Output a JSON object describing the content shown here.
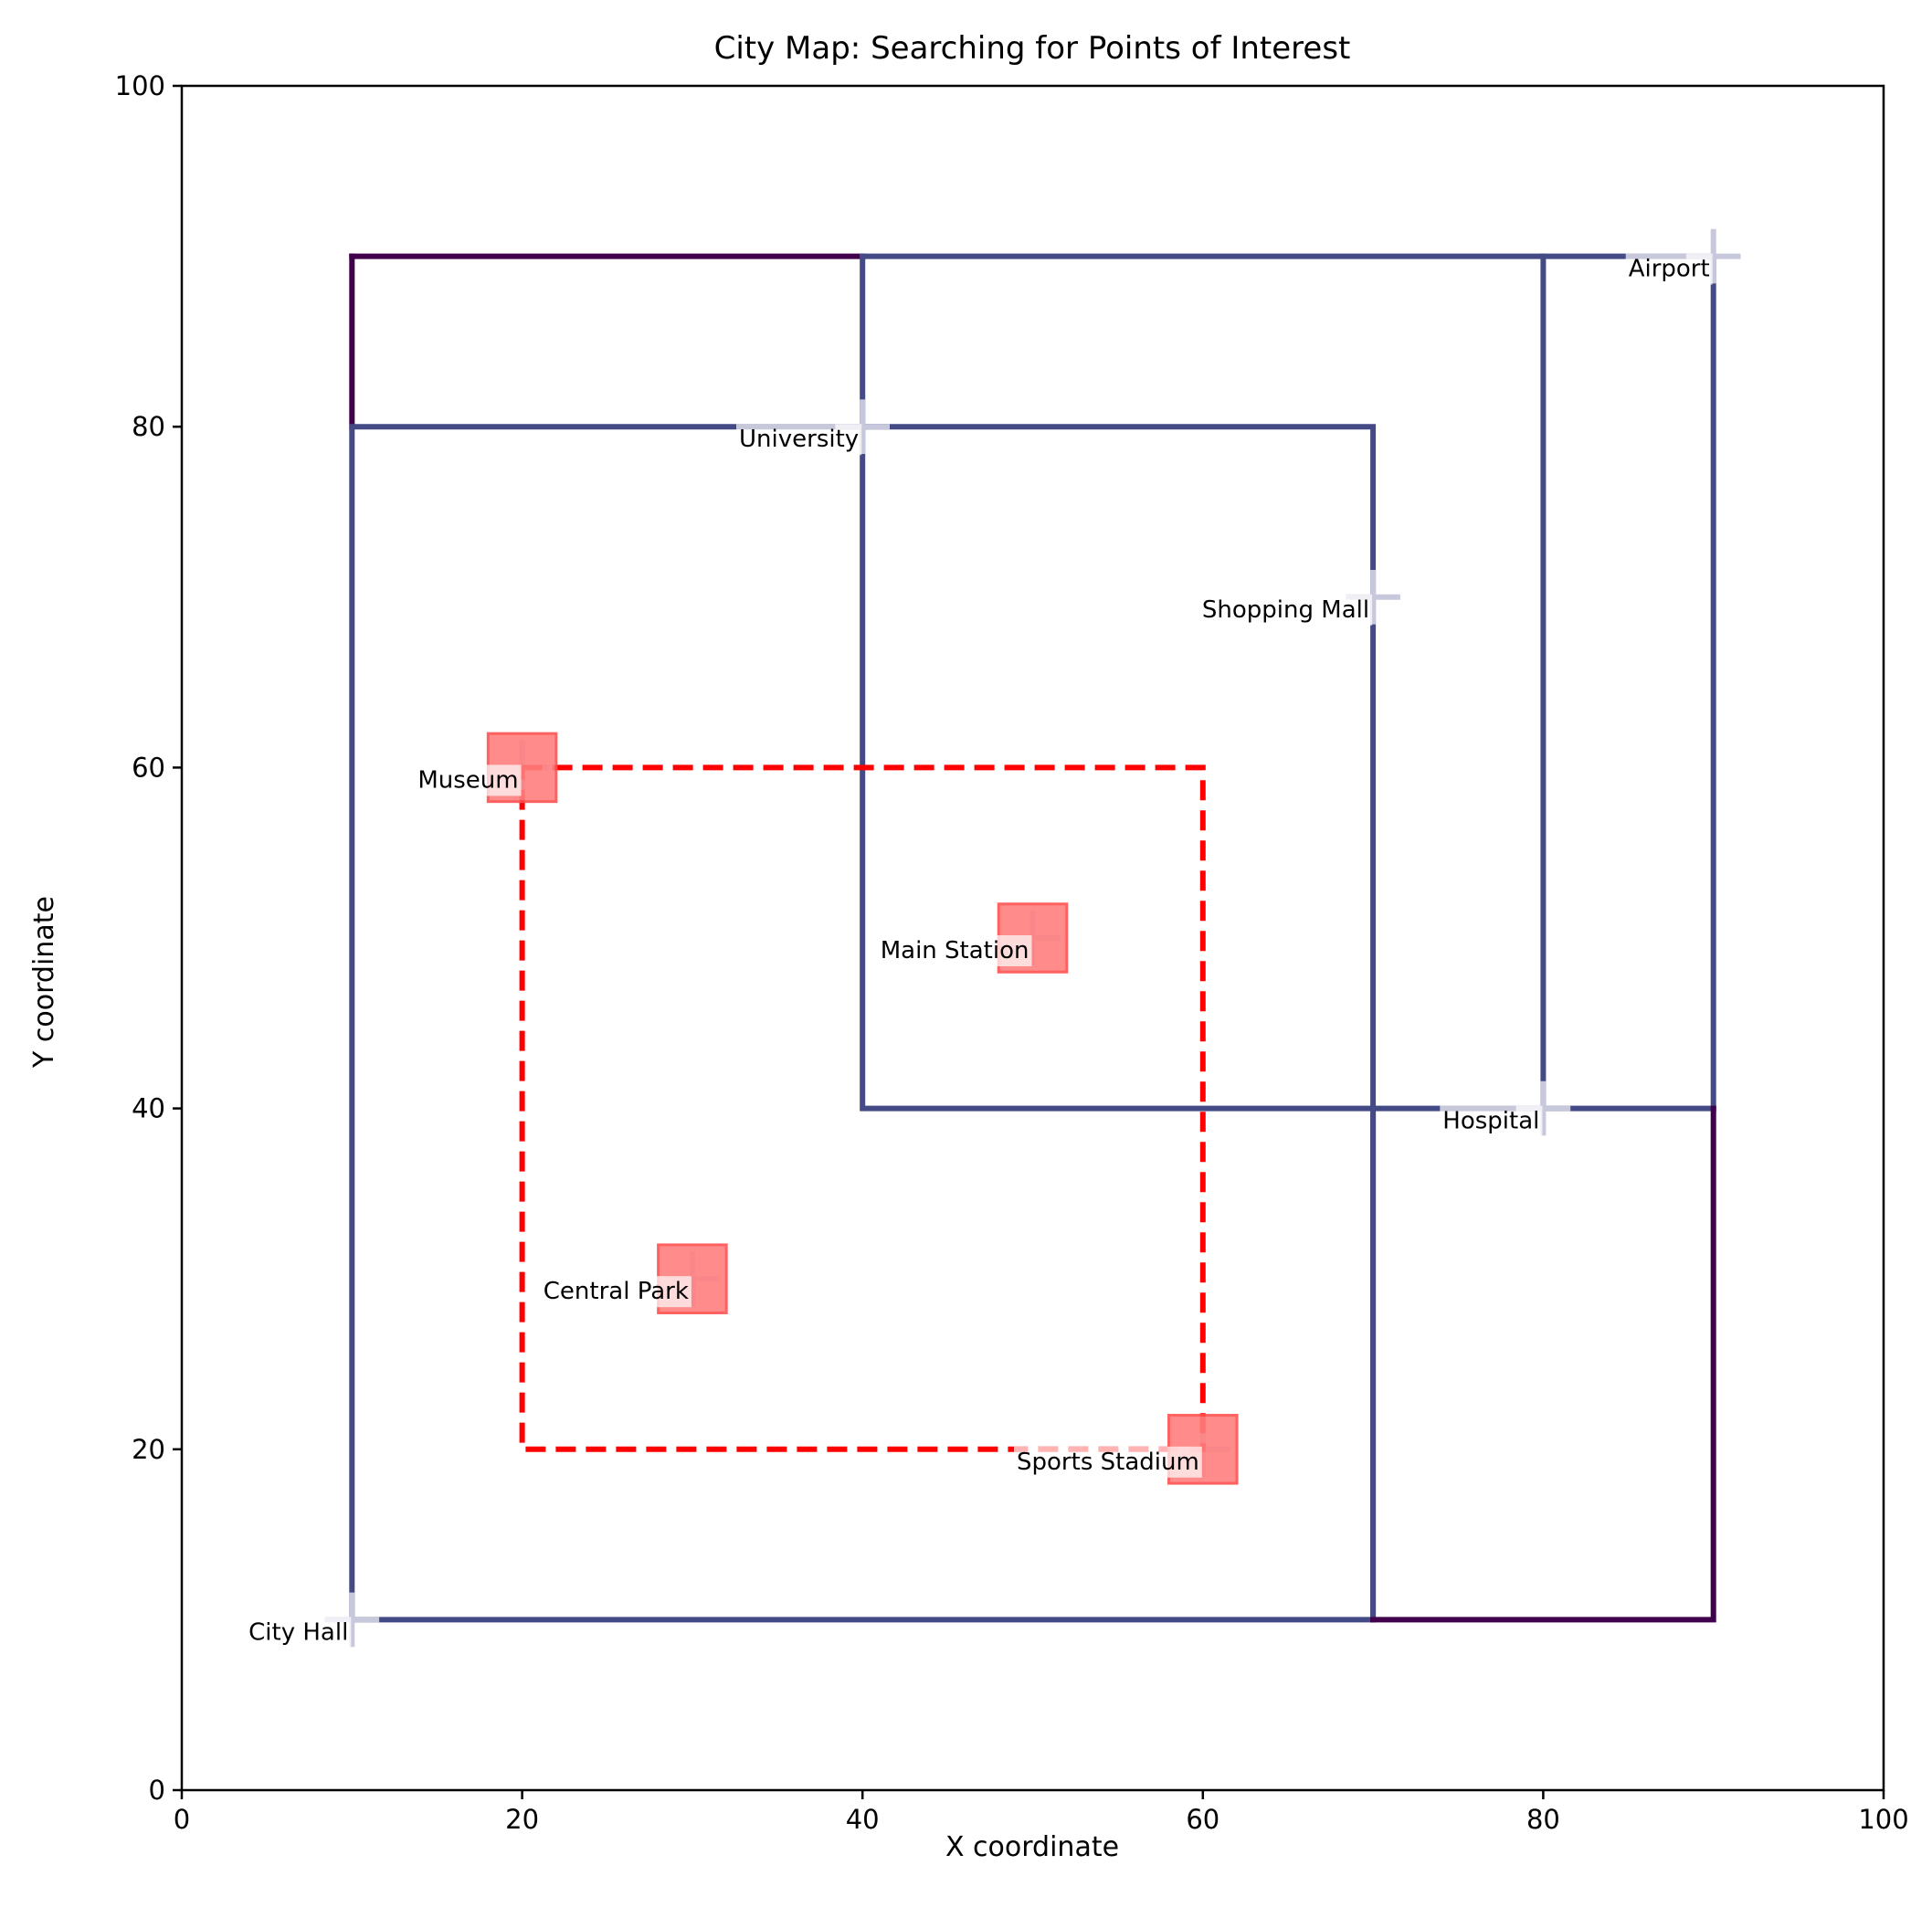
{
  "chart_data": {
    "type": "line",
    "title": "City Map: Searching for Points of Interest",
    "xlabel": "X coordinate",
    "ylabel": "Y coordinate",
    "xlim": [
      0,
      100
    ],
    "ylim": [
      0,
      100
    ],
    "xticks": [
      "0",
      "20",
      "40",
      "60",
      "80",
      "100"
    ],
    "yticks": [
      "0",
      "20",
      "40",
      "60",
      "80",
      "100"
    ],
    "grid": false,
    "legend": "none",
    "colors": {
      "road": "#444a86",
      "road_dark": "#40004b",
      "road_highlight": "#c8c8dc",
      "search": "#ff0000",
      "poi_fill": "#ff7f7f",
      "poi_edge": "#ff5050",
      "poi_label_bg": "#ffe0e0"
    },
    "points_of_interest": [
      {
        "label": "City Hall",
        "x": 10,
        "y": 10,
        "found": false
      },
      {
        "label": "Central Park",
        "x": 30,
        "y": 30,
        "found": true
      },
      {
        "label": "Museum",
        "x": 20,
        "y": 60,
        "found": true
      },
      {
        "label": "Main Station",
        "x": 50,
        "y": 50,
        "found": true
      },
      {
        "label": "University",
        "x": 40,
        "y": 80,
        "found": false
      },
      {
        "label": "Shopping Mall",
        "x": 70,
        "y": 70,
        "found": false
      },
      {
        "label": "Hospital",
        "x": 80,
        "y": 40,
        "found": false
      },
      {
        "label": "Airport",
        "x": 90,
        "y": 90,
        "found": false
      },
      {
        "label": "Sports Stadium",
        "x": 60,
        "y": 20,
        "found": true
      }
    ],
    "roads": [
      {
        "points": [
          [
            10,
            90
          ],
          [
            40,
            90
          ]
        ],
        "color": "#40004b"
      },
      {
        "points": [
          [
            10,
            90
          ],
          [
            10,
            80
          ]
        ],
        "color": "#40004b"
      },
      {
        "points": [
          [
            40,
            90
          ],
          [
            90,
            90
          ],
          [
            90,
            40
          ]
        ],
        "color": "#444a86"
      },
      {
        "points": [
          [
            10,
            80
          ],
          [
            10,
            10
          ],
          [
            70,
            10
          ],
          [
            70,
            80
          ],
          [
            10,
            80
          ]
        ],
        "color": "#444a86"
      },
      {
        "points": [
          [
            40,
            90
          ],
          [
            40,
            40
          ],
          [
            90,
            40
          ]
        ],
        "color": "#444a86"
      },
      {
        "points": [
          [
            80,
            90
          ],
          [
            80,
            40
          ]
        ],
        "color": "#444a86"
      },
      {
        "points": [
          [
            70,
            40
          ],
          [
            70,
            10
          ]
        ],
        "color": "#444a86"
      },
      {
        "points": [
          [
            70,
            10
          ],
          [
            90,
            10
          ],
          [
            90,
            40
          ]
        ],
        "color": "#40004b"
      }
    ],
    "search_area": {
      "x_range": [
        20,
        60
      ],
      "y_range": [
        20,
        60
      ],
      "style": "dashed"
    }
  }
}
